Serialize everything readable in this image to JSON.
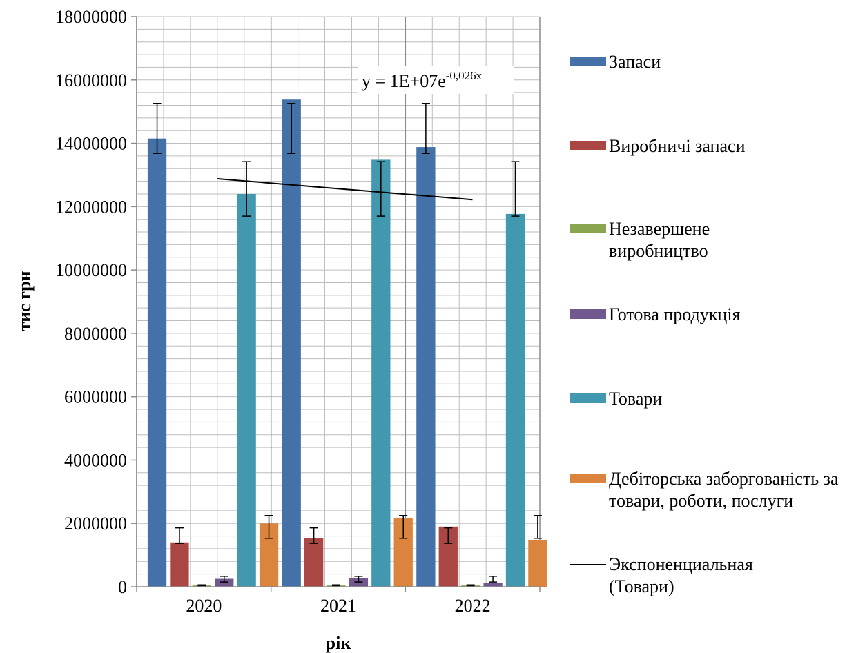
{
  "chart_data": {
    "type": "bar",
    "categories": [
      "2020",
      "2021",
      "2022"
    ],
    "xlabel": "рік",
    "ylabel": "тис грн",
    "ylim": [
      0,
      18000000
    ],
    "yticks": [
      "0",
      "2000000",
      "4000000",
      "6000000",
      "8000000",
      "10000000",
      "12000000",
      "14000000",
      "16000000",
      "18000000"
    ],
    "grid": true,
    "legend_position": "right",
    "series": [
      {
        "name": "Запаси",
        "color": "#4472A8",
        "values": [
          14150000,
          15380000,
          13880000
        ],
        "error_bars": [
          [
            13680000,
            15260000
          ],
          [
            13680000,
            15260000
          ],
          [
            13680000,
            15260000
          ]
        ]
      },
      {
        "name": "Виробничі запаси",
        "color": "#AA4643",
        "values": [
          1400000,
          1540000,
          1900000
        ],
        "error_bars": [
          [
            1370000,
            1860000
          ],
          [
            1370000,
            1860000
          ],
          [
            1370000,
            1860000
          ]
        ]
      },
      {
        "name": "Незавершене виробництво",
        "color": "#89A54E",
        "values": [
          40000,
          40000,
          40000
        ],
        "error_bars": [
          [
            30000,
            60000
          ],
          [
            30000,
            60000
          ],
          [
            30000,
            60000
          ]
        ]
      },
      {
        "name": "Готова продукція",
        "color": "#71588F",
        "values": [
          250000,
          280000,
          120000
        ],
        "error_bars": [
          [
            150000,
            330000
          ],
          [
            150000,
            330000
          ],
          [
            150000,
            330000
          ]
        ]
      },
      {
        "name": "Товари",
        "color": "#4198AF",
        "values": [
          12400000,
          13480000,
          11770000
        ],
        "error_bars": [
          [
            11700000,
            13420000
          ],
          [
            11700000,
            13420000
          ],
          [
            11700000,
            13420000
          ]
        ]
      },
      {
        "name": "Дебіторська заборгованість за товари, роботи, послуги",
        "color": "#DB843D",
        "values": [
          2000000,
          2180000,
          1460000
        ],
        "error_bars": [
          [
            1530000,
            2250000
          ],
          [
            1530000,
            2250000
          ],
          [
            1530000,
            2250000
          ]
        ]
      }
    ],
    "trendline": {
      "name": "Экспоненциальная (Товари)",
      "color": "#000000",
      "start": [
        2020,
        12880000
      ],
      "end": [
        2022,
        12220000
      ],
      "equation_main": "y = 1E+07e",
      "equation_exp": "-0,026x"
    }
  }
}
